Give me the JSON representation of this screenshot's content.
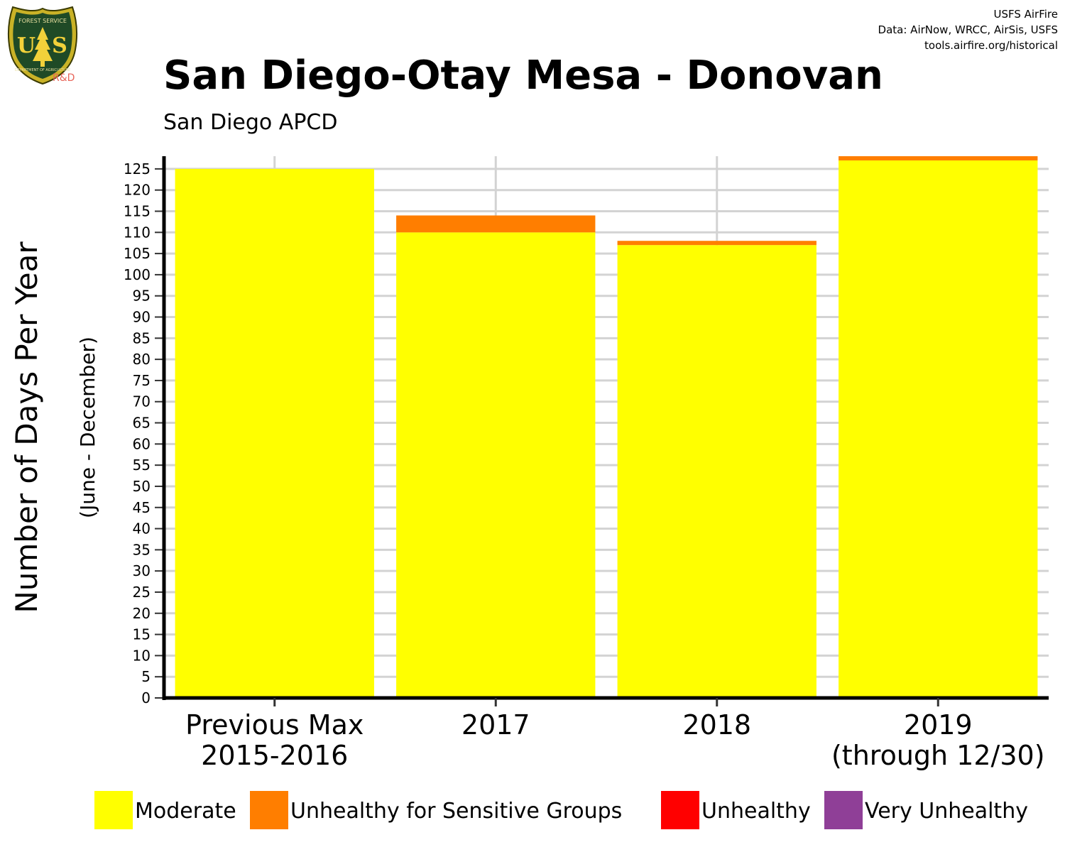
{
  "header": {
    "title": "San Diego-Otay Mesa - Donovan",
    "subtitle": "San Diego APCD"
  },
  "credits": {
    "line1": "USFS AirFire",
    "line2": "Data: AirNow, WRCC, AirSis, USFS",
    "line3": "tools.airfire.org/historical"
  },
  "logo": {
    "icon": "usfs-shield-icon",
    "top_text": "FOREST SERVICE",
    "letters_left": "U",
    "letters_right": "S",
    "bottom_text": "DEPARTMENT OF AGRICULTURE",
    "badge": "R&D"
  },
  "chart_data": {
    "type": "bar",
    "stacked": true,
    "categories": [
      [
        "Previous Max",
        "2015-2016"
      ],
      [
        "2017"
      ],
      [
        "2018"
      ],
      [
        "2019",
        "(through 12/30)"
      ]
    ],
    "series": [
      {
        "name": "Moderate",
        "color": "#FFFF00",
        "values": [
          125,
          110,
          107,
          127
        ]
      },
      {
        "name": "Unhealthy for Sensitive Groups",
        "color": "#FF7E00",
        "values": [
          0,
          4,
          1,
          1
        ]
      },
      {
        "name": "Unhealthy",
        "color": "#FF0000",
        "values": [
          0,
          0,
          0,
          0
        ]
      },
      {
        "name": "Very Unhealthy",
        "color": "#8F3F97",
        "values": [
          0,
          0,
          0,
          0
        ]
      }
    ],
    "ylabel": "Number of Days Per Year",
    "ylabel_sub": "(June - December)",
    "ylim": [
      0,
      128
    ],
    "yticks": [
      0,
      5,
      10,
      15,
      20,
      25,
      30,
      35,
      40,
      45,
      50,
      55,
      60,
      65,
      70,
      75,
      80,
      85,
      90,
      95,
      100,
      105,
      110,
      115,
      120,
      125
    ],
    "grid": true,
    "legend_position": "bottom"
  }
}
